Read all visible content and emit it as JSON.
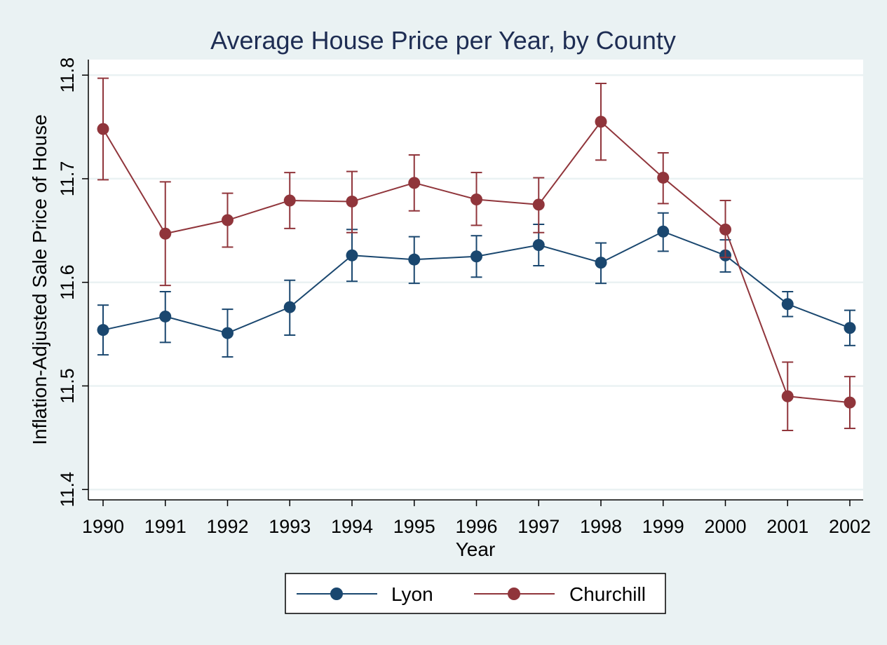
{
  "chart_data": {
    "type": "line",
    "title": "Average House Price per Year, by County",
    "xlabel": "Year",
    "ylabel": "Inflation-Adjusted Sale Price of House",
    "x": [
      1990,
      1991,
      1992,
      1993,
      1994,
      1995,
      1996,
      1997,
      1998,
      1999,
      2000,
      2001,
      2002
    ],
    "xticks": [
      "1990",
      "1991",
      "1992",
      "1993",
      "1994",
      "1995",
      "1996",
      "1997",
      "1998",
      "1999",
      "2000",
      "2001",
      "2002"
    ],
    "yticks": [
      "11.4",
      "11.5",
      "11.6",
      "11.7",
      "11.8"
    ],
    "ylim": [
      11.39,
      11.815
    ],
    "grid": true,
    "legend": "bottom",
    "series": [
      {
        "name": "Lyon",
        "color": "#1a476f",
        "values": [
          11.554,
          11.567,
          11.551,
          11.576,
          11.626,
          11.622,
          11.625,
          11.636,
          11.619,
          11.649,
          11.626,
          11.579,
          11.556
        ],
        "lower": [
          11.53,
          11.542,
          11.528,
          11.549,
          11.601,
          11.599,
          11.605,
          11.616,
          11.599,
          11.63,
          11.61,
          11.567,
          11.539
        ],
        "upper": [
          11.578,
          11.591,
          11.574,
          11.602,
          11.651,
          11.644,
          11.645,
          11.656,
          11.638,
          11.667,
          11.641,
          11.591,
          11.573
        ]
      },
      {
        "name": "Churchill",
        "color": "#90353b",
        "values": [
          11.748,
          11.647,
          11.66,
          11.679,
          11.678,
          11.696,
          11.68,
          11.675,
          11.755,
          11.701,
          11.651,
          11.49,
          11.484
        ],
        "lower": [
          11.699,
          11.597,
          11.634,
          11.652,
          11.648,
          11.669,
          11.655,
          11.648,
          11.718,
          11.676,
          11.624,
          11.457,
          11.459
        ],
        "upper": [
          11.797,
          11.697,
          11.686,
          11.706,
          11.707,
          11.723,
          11.706,
          11.701,
          11.792,
          11.725,
          11.679,
          11.523,
          11.509
        ]
      }
    ]
  }
}
